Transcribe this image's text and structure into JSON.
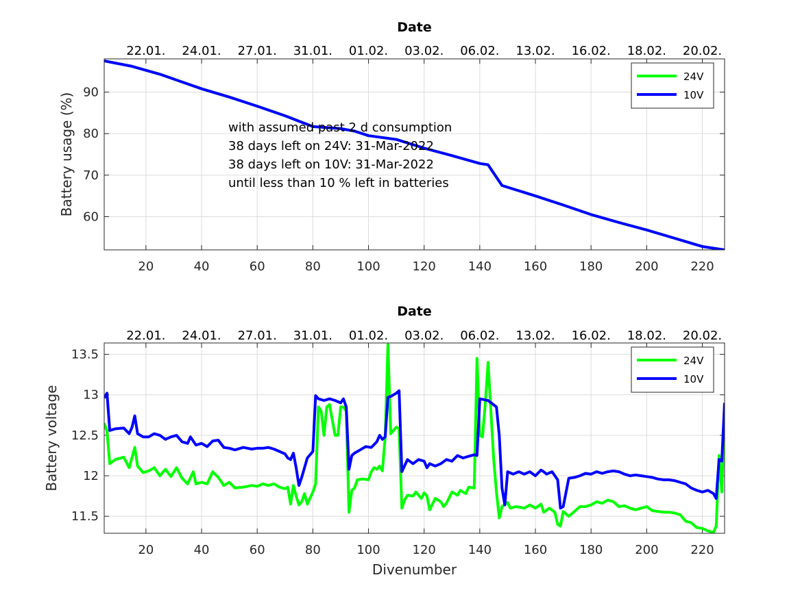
{
  "chart_data": [
    {
      "type": "line",
      "title": "Date",
      "xlabel": "",
      "ylabel": "Battery usage (%)",
      "xlim": [
        5,
        228
      ],
      "ylim": [
        52,
        98
      ],
      "xticks": [
        20,
        40,
        60,
        80,
        100,
        120,
        140,
        160,
        180,
        200,
        220
      ],
      "yticks": [
        60,
        70,
        80,
        90
      ],
      "top_tick_labels": [
        "22.01.",
        "24.01.",
        "27.01.",
        "31.01.",
        "01.02.",
        "03.02.",
        "06.02.",
        "13.02.",
        "16.02.",
        "18.02.",
        "20.02."
      ],
      "grid": true,
      "legend": {
        "position": "top-right",
        "entries": [
          "24V",
          "10V"
        ]
      },
      "annotation": [
        "with assumed past 2 d consumption",
        "38 days left on 24V: 31-Mar-2022",
        "38 days left on 10V: 31-Mar-2022",
        "until less than 10 % left in batteries"
      ],
      "series": [
        {
          "name": "24V",
          "color": "#00ff00",
          "x": [
            5,
            15,
            25,
            40,
            50,
            60,
            70,
            80,
            90,
            95,
            100,
            110,
            120,
            130,
            140,
            143,
            148,
            160,
            170,
            180,
            190,
            200,
            210,
            220,
            228
          ],
          "y": [
            97.5,
            96.2,
            94.3,
            90.8,
            88.8,
            86.6,
            84.3,
            81.7,
            81.2,
            80.6,
            79.5,
            78.6,
            76.5,
            74.7,
            72.8,
            72.5,
            67.5,
            65.0,
            62.8,
            60.5,
            58.6,
            56.8,
            54.8,
            52.8,
            52.0
          ]
        },
        {
          "name": "10V",
          "color": "#0000ff",
          "x": [
            5,
            15,
            25,
            40,
            50,
            60,
            70,
            80,
            90,
            95,
            100,
            110,
            120,
            130,
            140,
            143,
            148,
            160,
            170,
            180,
            190,
            200,
            210,
            220,
            228
          ],
          "y": [
            97.5,
            96.2,
            94.3,
            90.8,
            88.8,
            86.6,
            84.3,
            81.7,
            81.2,
            80.6,
            79.5,
            78.6,
            76.5,
            74.7,
            72.8,
            72.5,
            67.5,
            65.0,
            62.8,
            60.5,
            58.6,
            56.8,
            54.8,
            52.8,
            52.0
          ]
        }
      ]
    },
    {
      "type": "line",
      "title": "Date",
      "xlabel": "Divenumber",
      "ylabel": "Battery voltage",
      "xlim": [
        5,
        228
      ],
      "ylim": [
        11.29,
        13.64
      ],
      "xticks": [
        20,
        40,
        60,
        80,
        100,
        120,
        140,
        160,
        180,
        200,
        220
      ],
      "yticks": [
        11.5,
        12,
        12.5,
        13,
        13.5
      ],
      "yticklabels": [
        "11.5",
        "12",
        "12.5",
        "13",
        "13.5"
      ],
      "top_tick_labels": [
        "22.01.",
        "24.01.",
        "27.01.",
        "31.01.",
        "01.02.",
        "03.02.",
        "06.02.",
        "13.02.",
        "16.02.",
        "18.02.",
        "20.02."
      ],
      "grid": true,
      "legend": {
        "position": "top-right",
        "entries": [
          "24V",
          "10V"
        ]
      },
      "series": [
        {
          "name": "24V",
          "color": "#00ff00",
          "x": [
            5,
            6,
            7,
            9,
            12,
            14,
            16,
            17,
            19,
            21,
            23,
            25,
            27,
            29,
            31,
            33,
            35,
            37,
            38,
            40,
            42,
            44,
            46,
            48,
            50,
            52,
            55,
            58,
            60,
            62,
            64,
            66,
            68,
            70,
            71,
            72,
            73,
            74,
            75,
            76,
            77,
            78,
            80,
            81,
            82,
            83,
            84,
            85,
            86,
            88,
            89,
            90,
            91,
            92,
            93,
            94,
            95,
            96,
            98,
            100,
            101,
            102,
            103,
            104,
            105,
            106,
            107,
            108,
            110,
            111,
            112,
            113,
            114,
            116,
            117,
            118,
            119,
            120,
            121,
            122,
            124,
            126,
            127,
            128,
            130,
            132,
            133,
            135,
            136,
            138,
            139,
            140,
            141,
            142,
            143,
            144,
            145,
            146,
            147,
            148,
            150,
            151,
            153,
            156,
            158,
            160,
            162,
            163,
            165,
            167,
            168,
            169,
            170,
            172,
            174,
            176,
            178,
            180,
            182,
            184,
            186,
            188,
            190,
            192,
            194,
            196,
            198,
            200,
            202,
            204,
            206,
            208,
            210,
            212,
            214,
            216,
            218,
            220,
            222,
            224,
            225,
            226,
            227,
            228
          ],
          "y": [
            12.65,
            12.55,
            12.15,
            12.2,
            12.23,
            12.1,
            12.35,
            12.12,
            12.04,
            12.06,
            12.1,
            12.0,
            12.08,
            11.99,
            12.1,
            11.97,
            11.9,
            12.05,
            11.9,
            11.92,
            11.9,
            12.05,
            11.98,
            11.88,
            11.92,
            11.85,
            11.86,
            11.88,
            11.87,
            11.9,
            11.88,
            11.9,
            11.86,
            11.84,
            11.86,
            11.65,
            11.88,
            11.75,
            11.64,
            11.68,
            11.78,
            11.65,
            11.8,
            11.9,
            12.85,
            12.8,
            12.5,
            12.85,
            12.88,
            12.5,
            12.5,
            12.85,
            12.85,
            12.8,
            11.55,
            11.82,
            11.85,
            11.95,
            11.96,
            11.95,
            12.05,
            12.1,
            12.08,
            12.12,
            12.06,
            12.48,
            13.62,
            12.52,
            12.6,
            12.58,
            11.6,
            11.7,
            11.76,
            11.75,
            11.8,
            11.76,
            11.72,
            11.79,
            11.75,
            11.58,
            11.72,
            11.68,
            11.62,
            11.66,
            11.8,
            11.76,
            11.82,
            11.78,
            11.86,
            11.85,
            13.45,
            12.5,
            12.48,
            12.9,
            13.4,
            12.8,
            12.2,
            11.8,
            11.48,
            11.62,
            11.67,
            11.6,
            11.62,
            11.6,
            11.64,
            11.6,
            11.65,
            11.55,
            11.6,
            11.55,
            11.4,
            11.38,
            11.56,
            11.5,
            11.56,
            11.62,
            11.62,
            11.64,
            11.68,
            11.66,
            11.7,
            11.68,
            11.62,
            11.63,
            11.6,
            11.58,
            11.6,
            11.62,
            11.57,
            11.56,
            11.55,
            11.55,
            11.54,
            11.52,
            11.44,
            11.42,
            11.36,
            11.35,
            11.32,
            11.3,
            11.38,
            12.25,
            11.8,
            12.85
          ]
        },
        {
          "name": "10V",
          "color": "#0000ff",
          "x": [
            5,
            6,
            7,
            9,
            12,
            14,
            15,
            16,
            17,
            19,
            21,
            23,
            25,
            27,
            29,
            31,
            33,
            35,
            36,
            38,
            40,
            42,
            44,
            46,
            48,
            50,
            52,
            55,
            58,
            60,
            62,
            64,
            66,
            68,
            70,
            71,
            72,
            73,
            74,
            75,
            76,
            77,
            78,
            80,
            81,
            82,
            84,
            86,
            88,
            90,
            91,
            92,
            93,
            94,
            95,
            97,
            99,
            101,
            103,
            104,
            105,
            106,
            107,
            108,
            110,
            111,
            112,
            114,
            116,
            118,
            120,
            121,
            122,
            124,
            126,
            128,
            130,
            132,
            134,
            136,
            138,
            139,
            140,
            143,
            146,
            147,
            148,
            149,
            150,
            152,
            154,
            156,
            158,
            160,
            162,
            163,
            164,
            166,
            168,
            169,
            170,
            172,
            174,
            176,
            178,
            180,
            182,
            184,
            186,
            188,
            190,
            192,
            194,
            196,
            198,
            200,
            202,
            204,
            206,
            208,
            210,
            212,
            214,
            216,
            218,
            220,
            222,
            224,
            225,
            226,
            227,
            228
          ],
          "y": [
            12.96,
            13.02,
            12.56,
            12.58,
            12.59,
            12.52,
            12.6,
            12.74,
            12.52,
            12.48,
            12.48,
            12.52,
            12.5,
            12.45,
            12.48,
            12.5,
            12.42,
            12.4,
            12.48,
            12.38,
            12.4,
            12.36,
            12.43,
            12.44,
            12.35,
            12.34,
            12.32,
            12.35,
            12.33,
            12.34,
            12.34,
            12.35,
            12.33,
            12.3,
            12.27,
            12.22,
            12.2,
            12.28,
            12.1,
            11.88,
            11.98,
            12.1,
            12.22,
            12.3,
            12.99,
            12.95,
            12.93,
            12.95,
            12.93,
            12.9,
            12.95,
            12.85,
            12.08,
            12.25,
            12.28,
            12.32,
            12.36,
            12.35,
            12.42,
            12.5,
            12.45,
            12.48,
            12.97,
            12.98,
            13.02,
            13.05,
            12.05,
            12.2,
            12.15,
            12.2,
            12.18,
            12.1,
            12.15,
            12.12,
            12.15,
            12.2,
            12.18,
            12.25,
            12.22,
            12.24,
            12.26,
            12.25,
            12.95,
            12.93,
            12.85,
            12.5,
            11.85,
            11.64,
            12.05,
            12.02,
            12.05,
            12.02,
            12.05,
            12.0,
            12.07,
            12.05,
            12.02,
            12.05,
            11.95,
            11.6,
            11.62,
            11.97,
            11.98,
            12.0,
            12.03,
            12.02,
            12.05,
            12.03,
            12.05,
            12.06,
            12.05,
            12.02,
            12.0,
            12.01,
            12.0,
            11.99,
            11.98,
            11.96,
            11.95,
            11.95,
            11.94,
            11.92,
            11.9,
            11.85,
            11.82,
            11.8,
            11.82,
            11.78,
            11.72,
            12.2,
            12.18,
            12.9
          ]
        }
      ]
    }
  ]
}
